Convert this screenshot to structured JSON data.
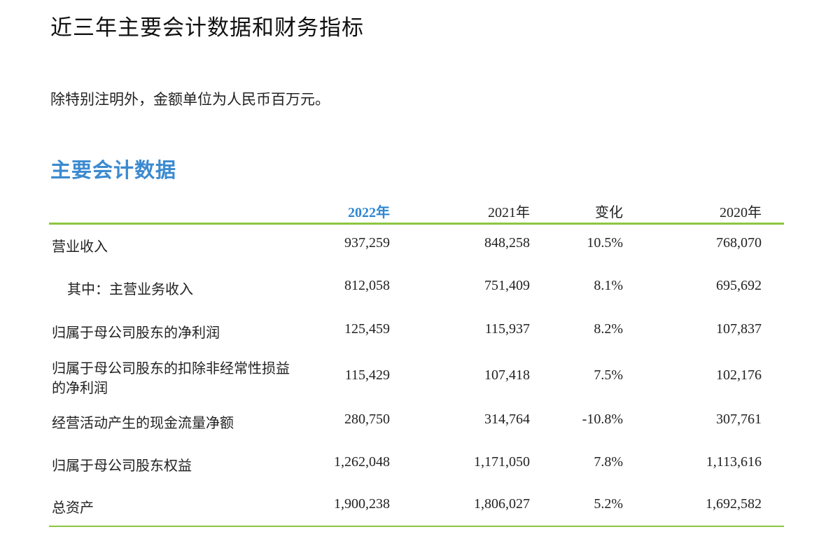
{
  "title": "近三年主要会计数据和财务指标",
  "note": "除特别注明外，金额单位为人民币百万元。",
  "section_title": "主要会计数据",
  "colors": {
    "accent_blue": "#3b8ad0",
    "rule_green": "#8dc63f"
  },
  "table": {
    "headers": [
      "2022年",
      "2021年",
      "变化",
      "2020年"
    ],
    "rows": [
      {
        "label": "营业收入",
        "values": [
          "937,259",
          "848,258",
          "10.5%",
          "768,070"
        ]
      },
      {
        "label": "其中：主营业务收入",
        "values": [
          "812,058",
          "751,409",
          "8.1%",
          "695,692"
        ]
      },
      {
        "label": "归属于母公司股东的净利润",
        "values": [
          "125,459",
          "115,937",
          "8.2%",
          "107,837"
        ]
      },
      {
        "label": "归属于母公司股东的扣除非经常性损益",
        "label_line2": "的净利润",
        "values": [
          "115,429",
          "107,418",
          "7.5%",
          "102,176"
        ]
      },
      {
        "label": "经营活动产生的现金流量净额",
        "values": [
          "280,750",
          "314,764",
          "-10.8%",
          "307,761"
        ]
      },
      {
        "label": "归属于母公司股东权益",
        "values": [
          "1,262,048",
          "1,171,050",
          "7.8%",
          "1,113,616"
        ]
      },
      {
        "label": "总资产",
        "values": [
          "1,900,238",
          "1,806,027",
          "5.2%",
          "1,692,582"
        ]
      }
    ]
  }
}
